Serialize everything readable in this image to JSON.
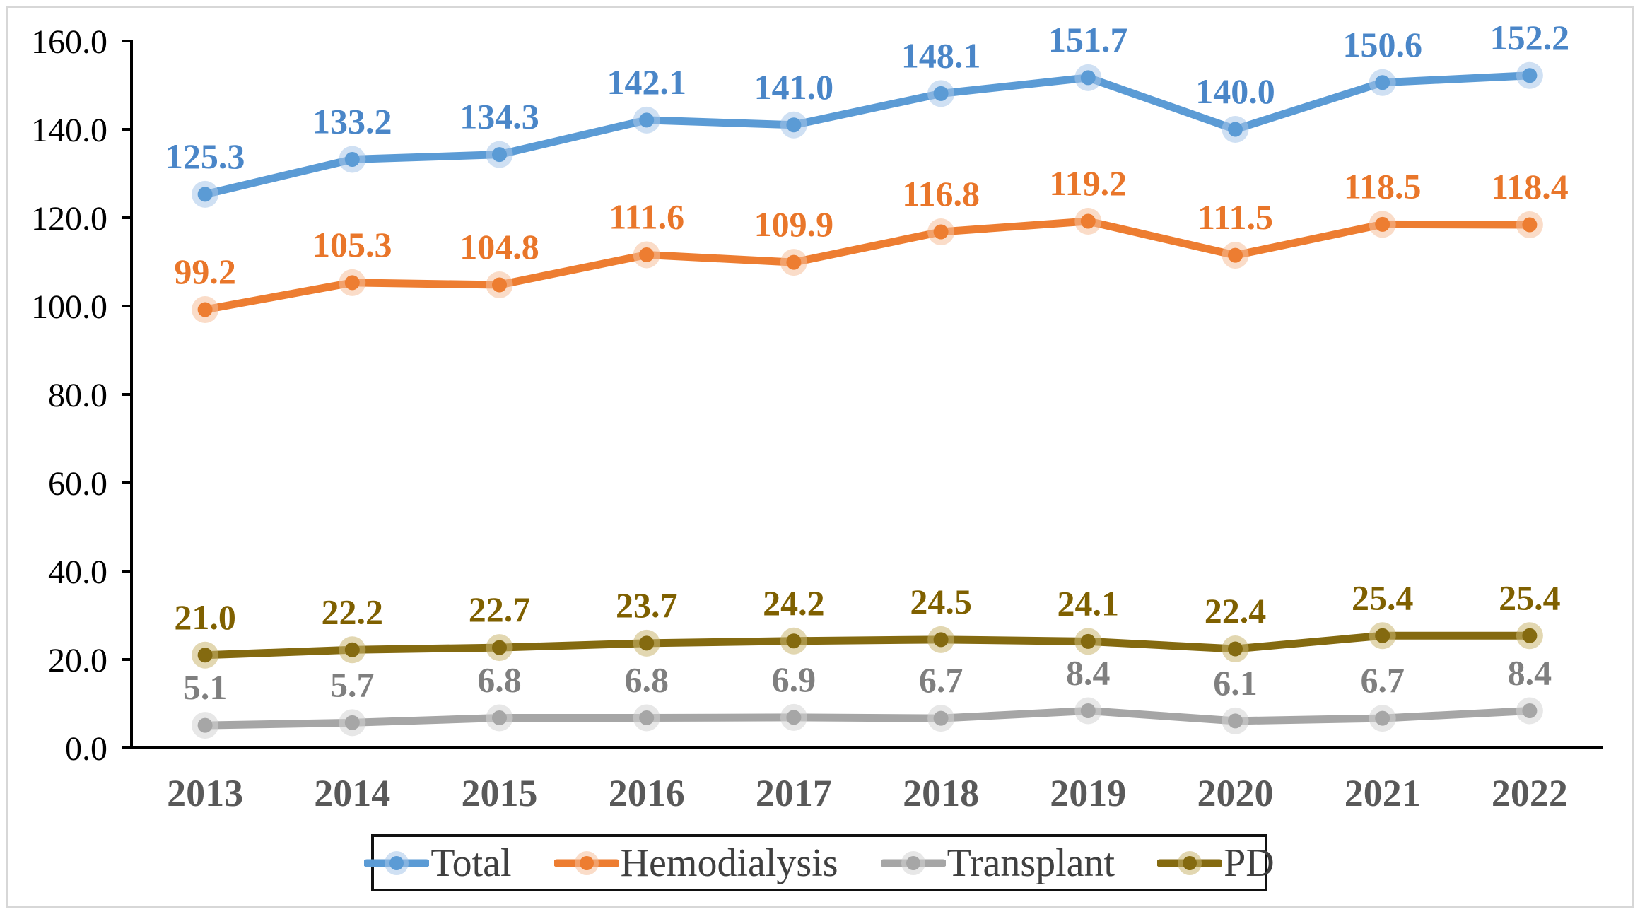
{
  "chart_data": {
    "type": "line",
    "title": "",
    "categories": [
      "2013",
      "2014",
      "2015",
      "2016",
      "2017",
      "2018",
      "2019",
      "2020",
      "2021",
      "2022"
    ],
    "series": [
      {
        "name": "Total",
        "color": "#5B9BD5",
        "halo": "#A8C7E9",
        "label_color": "#4A86C8",
        "values": [
          125.3,
          133.2,
          134.3,
          142.1,
          141.0,
          148.1,
          151.7,
          140.0,
          150.6,
          152.2
        ]
      },
      {
        "name": "Hemodialysis",
        "color": "#ED7D31",
        "halo": "#F6C09A",
        "label_color": "#E9762A",
        "values": [
          99.2,
          105.3,
          104.8,
          111.6,
          109.9,
          116.8,
          119.2,
          111.5,
          118.5,
          118.4
        ]
      },
      {
        "name": "Transplant",
        "color": "#A6A6A6",
        "halo": "#D4D4D4",
        "label_color": "#7F7F7F",
        "values": [
          5.1,
          5.7,
          6.8,
          6.8,
          6.9,
          6.7,
          8.4,
          6.1,
          6.7,
          8.4
        ]
      },
      {
        "name": "PD",
        "color": "#846A10",
        "halo": "#CBB671",
        "label_color": "#7F6000",
        "values": [
          21.0,
          22.2,
          22.7,
          23.7,
          24.2,
          24.5,
          24.1,
          22.4,
          25.4,
          25.4
        ]
      }
    ],
    "yaxis": {
      "min": 0,
      "max": 160,
      "step": 20,
      "decimals": 1
    },
    "xlabel": "",
    "ylabel": "",
    "grid": false,
    "legend": {
      "position": "bottom",
      "entries": [
        "Total",
        "Hemodialysis",
        "Transplant",
        "PD"
      ]
    }
  },
  "styles": {
    "axis_color": "#000000",
    "year_label_color": "#595959",
    "legend_text_color": "#404040",
    "frame_border_color": "#D7D7D7"
  }
}
